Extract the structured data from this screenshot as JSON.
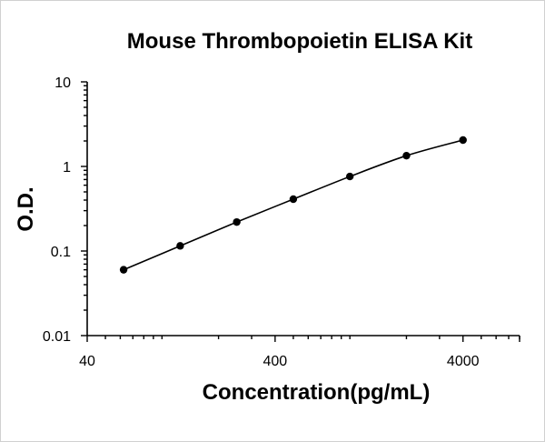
{
  "chart_data": {
    "type": "scatter",
    "title": "Mouse Thrombopoietin ELISA Kit",
    "xlabel": "Concentration(pg/mL)",
    "ylabel": "O.D.",
    "x_scale": "log",
    "y_scale": "log",
    "xlim": [
      40,
      8000
    ],
    "ylim": [
      0.01,
      10
    ],
    "x_ticks": [
      40,
      400,
      4000
    ],
    "x_tick_labels": [
      "40",
      "400",
      "4000"
    ],
    "y_ticks": [
      0.01,
      0.1,
      1,
      10
    ],
    "y_tick_labels": [
      "0.01",
      "0.1",
      "1",
      "10"
    ],
    "grid": false,
    "legend": "none",
    "series": [
      {
        "x": [
          62.5,
          125,
          250,
          500,
          1000,
          2000,
          4000
        ],
        "y": [
          0.06,
          0.115,
          0.22,
          0.41,
          0.76,
          1.34,
          2.05
        ],
        "line": "smooth",
        "marker": "circle",
        "color": "#000000"
      }
    ]
  }
}
